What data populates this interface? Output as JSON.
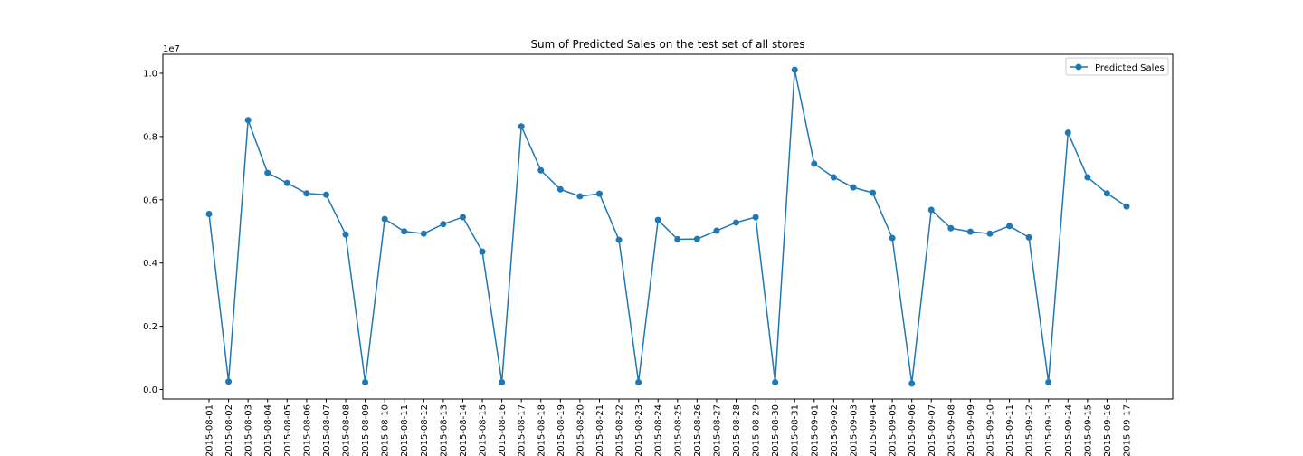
{
  "chart_data": {
    "type": "line",
    "title": "Sum of Predicted Sales on the test set of all stores",
    "xlabel": "",
    "ylabel": "",
    "y_offset_label": "1e7",
    "y_scale": 10000000,
    "ylim": [
      -0.03,
      1.06
    ],
    "yticks": [
      0.0,
      0.2,
      0.4,
      0.6,
      0.8,
      1.0
    ],
    "ytick_labels": [
      "0.0",
      "0.2",
      "0.4",
      "0.6",
      "0.8",
      "1.0"
    ],
    "grid": false,
    "legend_position": "top-right",
    "categories": [
      "2015-08-01",
      "2015-08-02",
      "2015-08-03",
      "2015-08-04",
      "2015-08-05",
      "2015-08-06",
      "2015-08-07",
      "2015-08-08",
      "2015-08-09",
      "2015-08-10",
      "2015-08-11",
      "2015-08-12",
      "2015-08-13",
      "2015-08-14",
      "2015-08-15",
      "2015-08-16",
      "2015-08-17",
      "2015-08-18",
      "2015-08-19",
      "2015-08-20",
      "2015-08-21",
      "2015-08-22",
      "2015-08-23",
      "2015-08-24",
      "2015-08-25",
      "2015-08-26",
      "2015-08-27",
      "2015-08-28",
      "2015-08-29",
      "2015-08-30",
      "2015-08-31",
      "2015-09-01",
      "2015-09-02",
      "2015-09-03",
      "2015-09-04",
      "2015-09-05",
      "2015-09-06",
      "2015-09-07",
      "2015-09-08",
      "2015-09-09",
      "2015-09-10",
      "2015-09-11",
      "2015-09-12",
      "2015-09-13",
      "2015-09-14",
      "2015-09-15",
      "2015-09-16",
      "2015-09-17"
    ],
    "series": [
      {
        "name": "Predicted Sales",
        "color": "#1f77b4",
        "marker": "circle",
        "values": [
          0.555,
          0.025,
          0.852,
          0.685,
          0.653,
          0.62,
          0.616,
          0.49,
          0.023,
          0.539,
          0.5,
          0.493,
          0.523,
          0.545,
          0.436,
          0.023,
          0.832,
          0.693,
          0.633,
          0.611,
          0.619,
          0.473,
          0.023,
          0.536,
          0.475,
          0.476,
          0.502,
          0.528,
          0.545,
          0.023,
          1.011,
          0.714,
          0.671,
          0.639,
          0.622,
          0.479,
          0.019,
          0.568,
          0.51,
          0.499,
          0.493,
          0.517,
          0.481,
          0.023,
          0.812,
          0.671,
          0.62,
          0.579
        ]
      }
    ]
  }
}
